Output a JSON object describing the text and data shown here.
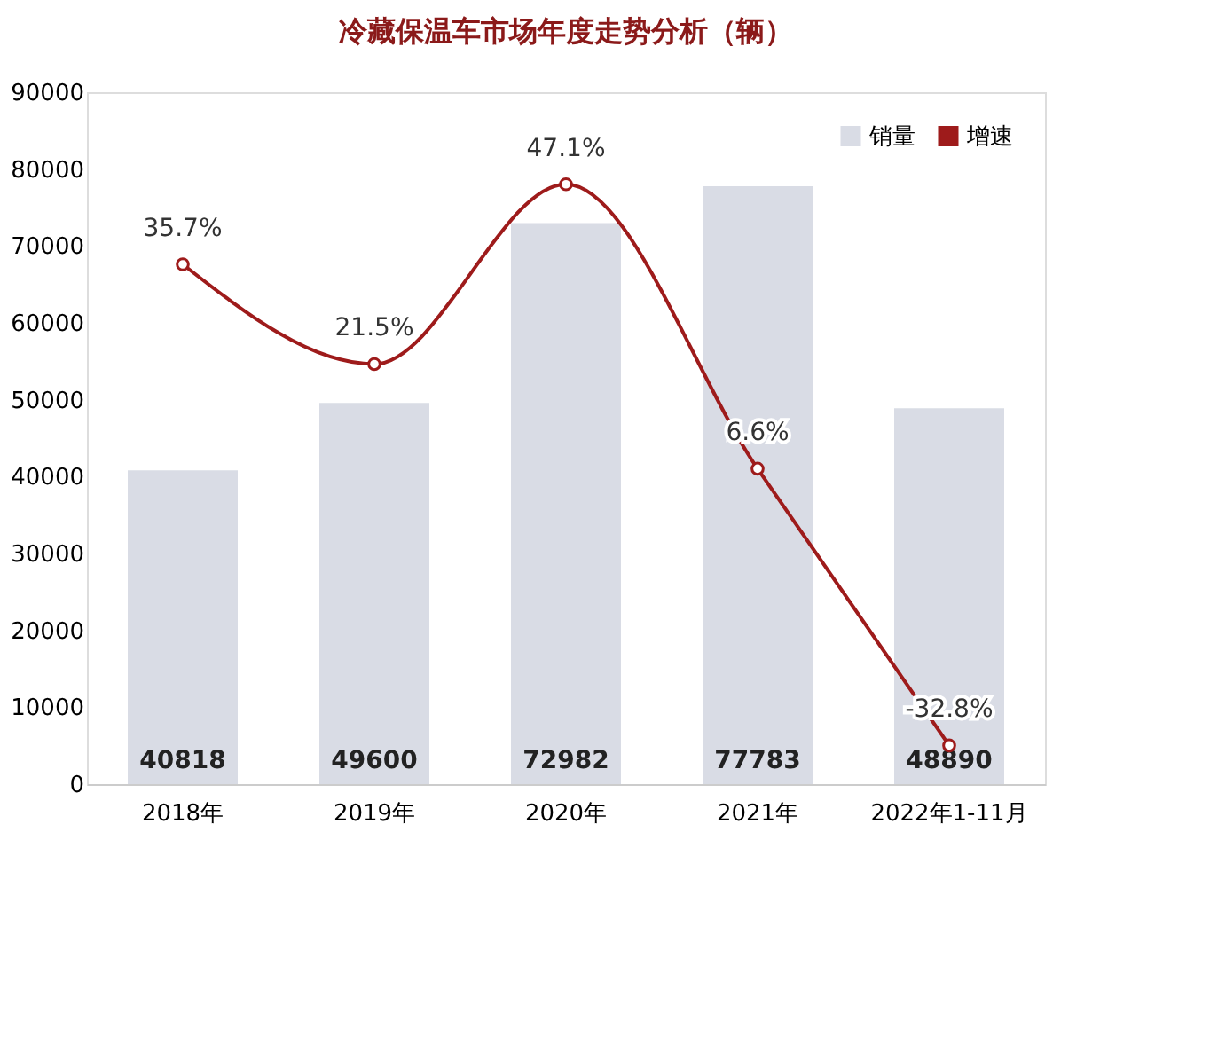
{
  "chart_data": {
    "type": "bar",
    "title": "冷藏保温车市场年度走势分析（辆）",
    "categories": [
      "2018年",
      "2019年",
      "2020年",
      "2021年",
      "2022年1-11月"
    ],
    "series": [
      {
        "name": "销量",
        "color": "#d9dce5",
        "values": [
          40818,
          49600,
          72982,
          77783,
          48890
        ]
      },
      {
        "name": "增速",
        "type": "line",
        "axis": "y2",
        "color": "#9e1b1b",
        "values": [
          35.7,
          21.5,
          47.1,
          6.6,
          -32.8
        ],
        "value_labels": [
          "35.7%",
          "21.5%",
          "47.1%",
          "6.6%",
          "-32.8%"
        ]
      }
    ],
    "data_labels": true,
    "ylim": [
      0,
      90000
    ],
    "yticks": [
      0,
      10000,
      20000,
      30000,
      40000,
      50000,
      60000,
      70000,
      80000,
      90000
    ],
    "y2lim": [
      -38.3,
      60.2
    ],
    "grid": false,
    "legend": "top right",
    "marker": "circle",
    "line_style": "solid"
  }
}
